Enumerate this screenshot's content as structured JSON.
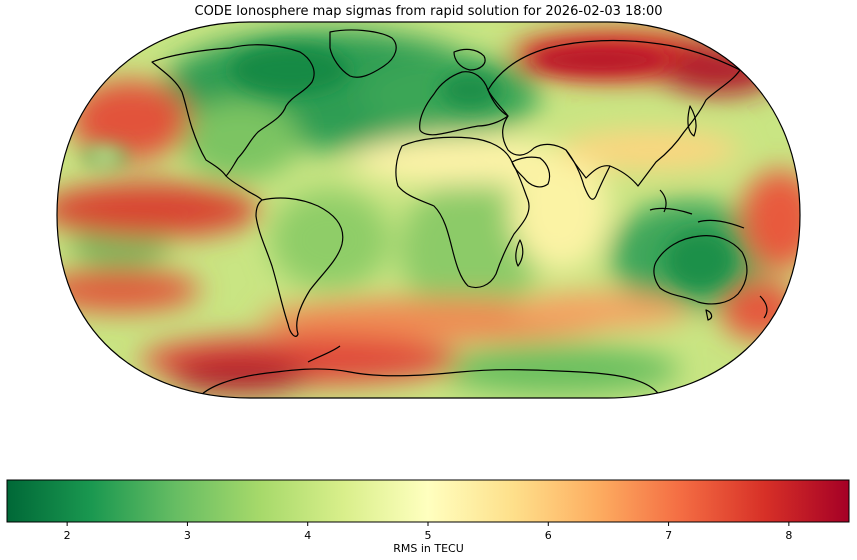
{
  "title": "CODE Ionosphere map sigmas from rapid solution for 2026-02-03 18:00",
  "colorbar": {
    "label": "RMS in TECU",
    "min": 1.5,
    "max": 8.5,
    "ticks": [
      "2",
      "3",
      "4",
      "5",
      "6",
      "7",
      "8"
    ],
    "colormap": [
      "#006837",
      "#1a9850",
      "#66bd63",
      "#a6d96a",
      "#d9ef8b",
      "#ffffbf",
      "#fee08b",
      "#fdae61",
      "#f46d43",
      "#d73027",
      "#a50026"
    ]
  },
  "map": {
    "projection": "Robinson",
    "coastline_color": "#000000"
  }
}
